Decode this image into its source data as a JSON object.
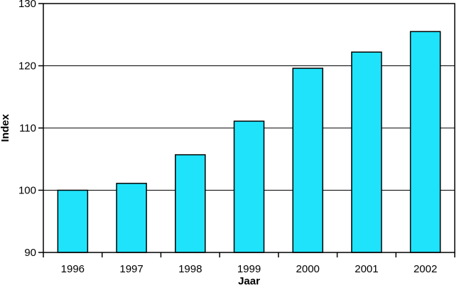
{
  "chart_data": {
    "type": "bar",
    "title": "",
    "xlabel": "Jaar",
    "ylabel": "Index",
    "categories": [
      "1996",
      "1997",
      "1998",
      "1999",
      "2000",
      "2001",
      "2002"
    ],
    "values": [
      100.0,
      101.1,
      105.7,
      111.1,
      119.6,
      122.2,
      125.5
    ],
    "ylim": [
      90,
      130
    ],
    "yticks": [
      90,
      100,
      110,
      120,
      130
    ],
    "grid": true,
    "legend": "none",
    "colors": {
      "bar_fill": "#1ee3fb",
      "bar_stroke": "#000000",
      "grid": "#000000",
      "axis": "#000000"
    }
  }
}
